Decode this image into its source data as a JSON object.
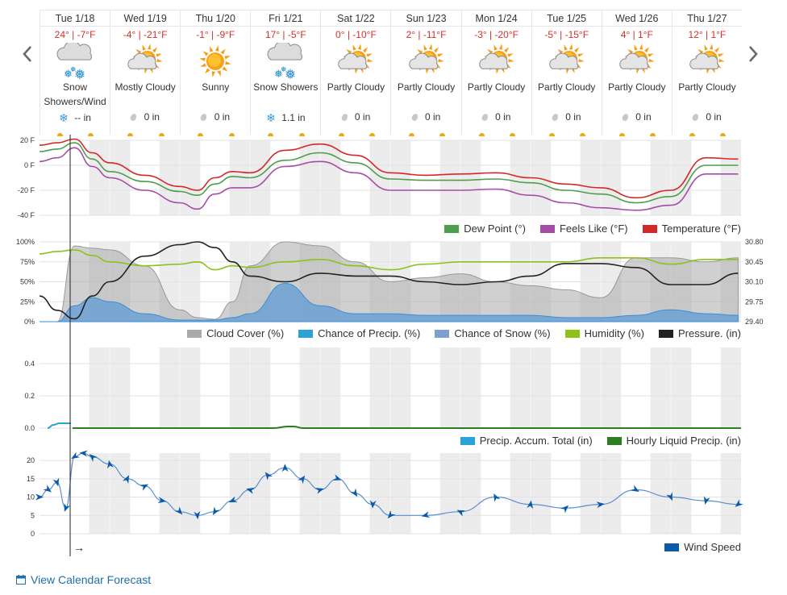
{
  "days": [
    {
      "name": "Tue 1/18",
      "temp": "24° | -7°F",
      "icon": "snow-cloud-icon",
      "condition": "Snow Showers/Wind",
      "precip": "-- in",
      "precip_type": "snow"
    },
    {
      "name": "Wed 1/19",
      "temp": "-4° | -21°F",
      "icon": "sun-cloud-icon",
      "condition": "Mostly Cloudy",
      "precip": "0 in",
      "precip_type": "rain"
    },
    {
      "name": "Thu 1/20",
      "temp": "-1° | -9°F",
      "icon": "sun-icon",
      "condition": "Sunny",
      "precip": "0 in",
      "precip_type": "rain"
    },
    {
      "name": "Fri 1/21",
      "temp": "17° | -5°F",
      "icon": "snow-cloud-icon",
      "condition": "Snow Showers",
      "precip": "1.1 in",
      "precip_type": "snow"
    },
    {
      "name": "Sat 1/22",
      "temp": "0° | -10°F",
      "icon": "sun-cloud-icon",
      "condition": "Partly Cloudy",
      "precip": "0 in",
      "precip_type": "rain"
    },
    {
      "name": "Sun 1/23",
      "temp": "2° | -11°F",
      "icon": "sun-cloud-icon",
      "condition": "Partly Cloudy",
      "precip": "0 in",
      "precip_type": "rain"
    },
    {
      "name": "Mon 1/24",
      "temp": "-3° | -20°F",
      "icon": "sun-cloud-icon",
      "condition": "Partly Cloudy",
      "precip": "0 in",
      "precip_type": "rain"
    },
    {
      "name": "Tue 1/25",
      "temp": "-5° | -15°F",
      "icon": "sun-cloud-icon",
      "condition": "Partly Cloudy",
      "precip": "0 in",
      "precip_type": "rain"
    },
    {
      "name": "Wed 1/26",
      "temp": "4° | 1°F",
      "icon": "sun-cloud-icon",
      "condition": "Partly Cloudy",
      "precip": "0 in",
      "precip_type": "rain"
    },
    {
      "name": "Thu 1/27",
      "temp": "12° | 1°F",
      "icon": "sun-cloud-icon",
      "condition": "Partly Cloudy",
      "precip": "0 in",
      "precip_type": "rain"
    }
  ],
  "colors": {
    "temperature": "#d62728",
    "feels_like": "#a64ca6",
    "dew_point": "#4d9e4d",
    "cloud_cover": "#aaaaaa",
    "chance_precip": "#2aa3d8",
    "chance_snow": "#7f9fd0",
    "humidity": "#8ec21a",
    "pressure": "#222222",
    "precip_accum": "#2aa3d8",
    "hourly_liquid": "#2e7d1f",
    "wind_speed": "#0b5aa8",
    "sun": "#f1a80f"
  },
  "legends": {
    "temp": [
      "Dew Point (°)",
      "Feels Like (°F)",
      "Temperature (°F)"
    ],
    "cloud": [
      "Cloud Cover (%)",
      "Chance of Precip. (%)",
      "Chance of Snow (%)",
      "Humidity (%)",
      "Pressure. (in)"
    ],
    "precip": [
      "Precip. Accum. Total (in)",
      "Hourly Liquid Precip. (in)"
    ],
    "wind": [
      "Wind Speed"
    ]
  },
  "axes": {
    "temp_ticks": [
      "20 F",
      "0 F",
      "-20 F",
      "-40 F"
    ],
    "cloud_ticks": [
      "100%",
      "75%",
      "50%",
      "25%",
      "0%"
    ],
    "pressure_ticks": [
      "30.80",
      "30.45",
      "30.10",
      "29.75",
      "29.40"
    ],
    "precip_ticks": [
      "0.4",
      "0.2",
      "0.0"
    ],
    "wind_ticks": [
      "20",
      "15",
      "10",
      "5",
      "0"
    ]
  },
  "cursor_arrow": "→",
  "footer": {
    "calendar_link": "View Calendar Forecast"
  },
  "chart_data": [
    {
      "type": "line",
      "ylim": [
        -40,
        20
      ],
      "x_hours": [
        0,
        6,
        12,
        18,
        24,
        36,
        48,
        54,
        60,
        66,
        72,
        84,
        96,
        108,
        120,
        132,
        144,
        156,
        168,
        180,
        192,
        204,
        216,
        228,
        239
      ],
      "series": [
        {
          "name": "Temperature (°F)",
          "values": [
            16,
            18,
            21,
            10,
            2,
            -8,
            -17,
            -20,
            -10,
            -5,
            -6,
            12,
            17,
            8,
            -6,
            -8,
            -7,
            -6,
            -10,
            -15,
            -18,
            -26,
            -20,
            6,
            5
          ]
        },
        {
          "name": "Dew Point (°)",
          "values": [
            11,
            13,
            18,
            5,
            -5,
            -13,
            -21,
            -24,
            -15,
            -9,
            -10,
            4,
            10,
            2,
            -11,
            -12,
            -12,
            -11,
            -14,
            -20,
            -23,
            -30,
            -25,
            0,
            0
          ]
        },
        {
          "name": "Feels Like (°F)",
          "values": [
            3,
            6,
            14,
            -1,
            -10,
            -20,
            -30,
            -35,
            -23,
            -18,
            -18,
            -1,
            3,
            -6,
            -20,
            -20,
            -20,
            -19,
            -24,
            -30,
            -34,
            -36,
            -32,
            -7,
            -7
          ]
        }
      ]
    },
    {
      "type": "line",
      "ylim": [
        0,
        100
      ],
      "y2lim": [
        29.4,
        30.8
      ],
      "x_hours": [
        0,
        6,
        12,
        18,
        24,
        36,
        48,
        54,
        60,
        66,
        72,
        84,
        96,
        108,
        120,
        132,
        144,
        156,
        168,
        180,
        192,
        204,
        216,
        228,
        239
      ],
      "series": [
        {
          "name": "Cloud Cover (%)",
          "values": [
            0,
            0,
            95,
            92,
            90,
            70,
            15,
            5,
            3,
            25,
            70,
            100,
            95,
            75,
            50,
            55,
            60,
            50,
            45,
            40,
            30,
            80,
            80,
            75,
            80
          ]
        },
        {
          "name": "Chance of Precip. (%)",
          "values": [
            0,
            0,
            20,
            30,
            25,
            10,
            2,
            2,
            2,
            5,
            10,
            48,
            20,
            10,
            10,
            8,
            8,
            8,
            8,
            5,
            5,
            8,
            15,
            10,
            8
          ]
        },
        {
          "name": "Chance of Snow (%)",
          "values": [
            0,
            0,
            20,
            30,
            25,
            10,
            2,
            2,
            2,
            5,
            10,
            48,
            20,
            10,
            10,
            8,
            8,
            8,
            8,
            5,
            5,
            8,
            15,
            10,
            8
          ]
        },
        {
          "name": "Humidity (%)",
          "values": [
            85,
            88,
            90,
            83,
            75,
            70,
            72,
            75,
            65,
            70,
            68,
            75,
            78,
            70,
            65,
            72,
            75,
            75,
            75,
            75,
            80,
            80,
            72,
            78,
            78
          ]
        },
        {
          "name": "Pressure. (in)",
          "values": [
            29.85,
            29.6,
            29.45,
            29.85,
            30.1,
            30.55,
            30.75,
            30.8,
            30.7,
            30.45,
            30.2,
            30.1,
            30.25,
            30.2,
            30.2,
            30.1,
            30.05,
            30.1,
            30.2,
            30.42,
            30.42,
            30.35,
            30.05,
            30.05,
            30.25
          ]
        }
      ]
    },
    {
      "type": "line",
      "ylim": [
        0,
        0.5
      ],
      "series": [
        {
          "name": "Precip. Accum. Total (in)",
          "x_hours": [
            0,
            2,
            4,
            6,
            8
          ],
          "values": [
            0,
            0.02,
            0.03,
            0.03,
            0.03
          ]
        },
        {
          "name": "Hourly Liquid Precip. (in)",
          "x_hours": [
            0,
            10,
            20,
            30,
            40,
            60,
            80,
            85,
            87,
            90,
            100,
            150,
            200,
            240
          ],
          "values": [
            0,
            0,
            0,
            0,
            0,
            0,
            0,
            0.01,
            0.01,
            0,
            0,
            0,
            0,
            0
          ]
        }
      ]
    },
    {
      "type": "line",
      "ylim": [
        0,
        22
      ],
      "x_hours": [
        0,
        3,
        6,
        9,
        12,
        15,
        18,
        24,
        30,
        36,
        42,
        48,
        54,
        60,
        66,
        72,
        78,
        84,
        90,
        96,
        102,
        108,
        114,
        120,
        132,
        144,
        156,
        168,
        180,
        192,
        204,
        216,
        228,
        239
      ],
      "series": [
        {
          "name": "Wind Speed",
          "values": [
            10,
            12,
            14,
            7,
            21,
            22,
            21,
            19,
            15,
            13,
            9,
            6,
            5,
            6,
            9,
            12,
            16,
            18,
            15,
            12,
            15,
            11,
            8,
            5,
            5,
            6,
            10,
            8,
            7,
            8,
            12,
            10,
            9,
            8
          ]
        }
      ]
    }
  ]
}
